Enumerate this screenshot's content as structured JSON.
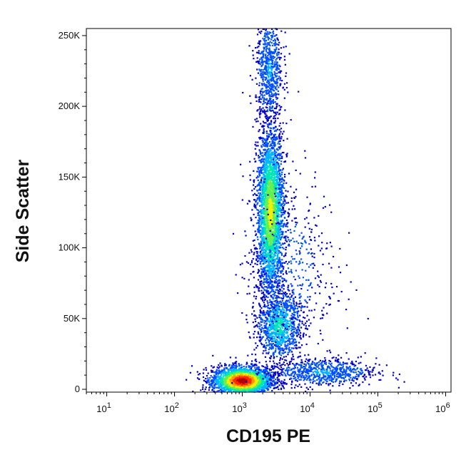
{
  "chart_data": {
    "type": "scatter",
    "subtype": "flow-cytometry density dot plot",
    "xlabel": "CD195 PE",
    "ylabel": "Side Scatter",
    "x_scale": "log",
    "y_scale": "linear",
    "xlim": [
      5,
      1200000
    ],
    "ylim": [
      -2000,
      255000
    ],
    "x_ticks": [
      {
        "value": 10,
        "base": "10",
        "exp": "1"
      },
      {
        "value": 100,
        "base": "10",
        "exp": "2"
      },
      {
        "value": 1000,
        "base": "10",
        "exp": "3"
      },
      {
        "value": 10000,
        "base": "10",
        "exp": "4"
      },
      {
        "value": 100000,
        "base": "10",
        "exp": "5"
      },
      {
        "value": 1000000,
        "base": "10",
        "exp": "6"
      }
    ],
    "y_ticks": [
      {
        "value": 0,
        "label": "0"
      },
      {
        "value": 50000,
        "label": "50K"
      },
      {
        "value": 100000,
        "label": "100K"
      },
      {
        "value": 150000,
        "label": "150K"
      },
      {
        "value": 200000,
        "label": "200K"
      },
      {
        "value": 250000,
        "label": "250K"
      }
    ],
    "color_scale": [
      "#0000c8",
      "#0050ff",
      "#00b4ff",
      "#00e6b4",
      "#64f050",
      "#f0f000",
      "#ff9600",
      "#ff2800",
      "#b40000"
    ],
    "populations": [
      {
        "x_center": 1000,
        "x_log_spread": 0.22,
        "y_center": 6000,
        "y_spread": 5000,
        "count": 2600,
        "peak_density": 1.0
      },
      {
        "x_center": 2600,
        "x_log_spread": 0.1,
        "y_center": 125000,
        "y_spread": 30000,
        "count": 3000,
        "peak_density": 0.6
      },
      {
        "x_center": 3500,
        "x_log_spread": 0.16,
        "y_center": 45000,
        "y_spread": 12000,
        "count": 1000,
        "peak_density": 0.35
      },
      {
        "x_center": 15000,
        "x_log_spread": 0.4,
        "y_center": 12000,
        "y_spread": 5000,
        "count": 700,
        "peak_density": 0.2
      },
      {
        "x_center": 5000,
        "x_log_spread": 0.35,
        "y_center": 85000,
        "y_spread": 35000,
        "count": 500,
        "peak_density": 0.1
      },
      {
        "x_center": 2500,
        "x_log_spread": 0.1,
        "y_center": 225000,
        "y_spread": 20000,
        "count": 700,
        "peak_density": 0.2
      }
    ]
  }
}
